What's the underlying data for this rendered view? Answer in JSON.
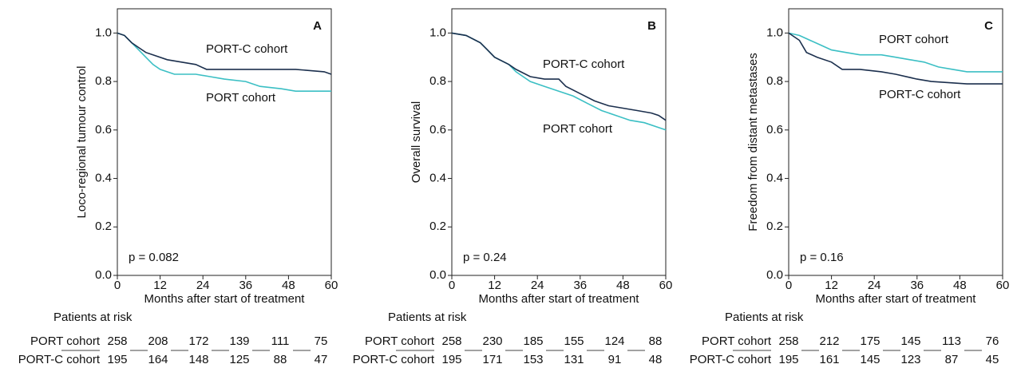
{
  "chart_data": [
    {
      "type": "line",
      "title": "A",
      "ylabel": "Loco-regional tumour control",
      "xlabel": "Months after start of treatment",
      "annotation": "p = 0.082",
      "at_risk_label": "Patients at risk",
      "xlim": [
        0,
        60
      ],
      "ylim": [
        0,
        1.1
      ],
      "xticks": [
        0,
        12,
        24,
        36,
        48,
        60
      ],
      "yticks": [
        {
          "value": 0,
          "label": "0.0"
        },
        0.2,
        0.4,
        0.6,
        0.8,
        {
          "value": 1,
          "label": "1.0"
        }
      ],
      "series": [
        {
          "name": "PORT cohort",
          "color": "#3bbfc4",
          "x": [
            0,
            2,
            4,
            6,
            8,
            10,
            12,
            16,
            22,
            26,
            30,
            36,
            40,
            46,
            50,
            60
          ],
          "values": [
            1,
            0.99,
            0.96,
            0.93,
            0.9,
            0.87,
            0.85,
            0.83,
            0.83,
            0.82,
            0.81,
            0.8,
            0.78,
            0.77,
            0.76,
            0.76
          ],
          "at_risk": [
            258,
            208,
            172,
            139,
            111,
            75
          ]
        },
        {
          "name": "PORT-C cohort",
          "color": "#1b2f4d",
          "x": [
            0,
            2,
            4,
            6,
            8,
            10,
            14,
            18,
            22,
            25,
            30,
            40,
            50,
            58,
            60
          ],
          "values": [
            1,
            0.99,
            0.96,
            0.94,
            0.92,
            0.91,
            0.89,
            0.88,
            0.87,
            0.85,
            0.85,
            0.85,
            0.85,
            0.84,
            0.83
          ],
          "at_risk": [
            195,
            164,
            148,
            125,
            88,
            47
          ]
        }
      ]
    },
    {
      "type": "line",
      "title": "B",
      "ylabel": "Overall survival",
      "xlabel": "Months after start of treatment",
      "annotation": "p = 0.24",
      "at_risk_label": "Patients at risk",
      "xlim": [
        0,
        60
      ],
      "ylim": [
        0,
        1.1
      ],
      "xticks": [
        0,
        12,
        24,
        36,
        48,
        60
      ],
      "yticks": [
        {
          "value": 0,
          "label": "0.0"
        },
        0.2,
        0.4,
        0.6,
        0.8,
        {
          "value": 1,
          "label": "1.0"
        }
      ],
      "series": [
        {
          "name": "PORT cohort",
          "color": "#3bbfc4",
          "x": [
            0,
            4,
            8,
            10,
            12,
            16,
            18,
            22,
            26,
            30,
            34,
            38,
            42,
            46,
            50,
            54,
            58,
            60
          ],
          "values": [
            1,
            0.99,
            0.96,
            0.93,
            0.9,
            0.87,
            0.84,
            0.8,
            0.78,
            0.76,
            0.74,
            0.71,
            0.68,
            0.66,
            0.64,
            0.63,
            0.61,
            0.6
          ],
          "at_risk": [
            258,
            230,
            185,
            155,
            124,
            88
          ]
        },
        {
          "name": "PORT-C cohort",
          "color": "#1b2f4d",
          "x": [
            0,
            4,
            8,
            10,
            12,
            16,
            18,
            22,
            26,
            30,
            32,
            36,
            40,
            44,
            48,
            52,
            56,
            58,
            60
          ],
          "values": [
            1,
            0.99,
            0.96,
            0.93,
            0.9,
            0.87,
            0.85,
            0.82,
            0.81,
            0.81,
            0.78,
            0.75,
            0.72,
            0.7,
            0.69,
            0.68,
            0.67,
            0.66,
            0.64
          ],
          "at_risk": [
            195,
            171,
            153,
            131,
            91,
            48
          ]
        }
      ]
    },
    {
      "type": "line",
      "title": "C",
      "ylabel": "Freedom from distant metastases",
      "xlabel": "Months after start of treatment",
      "annotation": "p = 0.16",
      "at_risk_label": "Patients at risk",
      "xlim": [
        0,
        60
      ],
      "ylim": [
        0,
        1.1
      ],
      "xticks": [
        0,
        12,
        24,
        36,
        48,
        60
      ],
      "yticks": [
        {
          "value": 0,
          "label": "0.0"
        },
        0.2,
        0.4,
        0.6,
        0.8,
        {
          "value": 1,
          "label": "1.0"
        }
      ],
      "series": [
        {
          "name": "PORT cohort",
          "color": "#3bbfc4",
          "x": [
            0,
            3,
            6,
            9,
            12,
            16,
            20,
            26,
            30,
            34,
            38,
            42,
            46,
            50,
            60
          ],
          "values": [
            1,
            0.99,
            0.97,
            0.95,
            0.93,
            0.92,
            0.91,
            0.91,
            0.9,
            0.89,
            0.88,
            0.86,
            0.85,
            0.84,
            0.84
          ],
          "at_risk": [
            258,
            212,
            175,
            145,
            113,
            76
          ]
        },
        {
          "name": "PORT-C cohort",
          "color": "#1b2f4d",
          "x": [
            0,
            3,
            5,
            8,
            12,
            15,
            20,
            26,
            30,
            36,
            40,
            50,
            60
          ],
          "values": [
            1,
            0.97,
            0.92,
            0.9,
            0.88,
            0.85,
            0.85,
            0.84,
            0.83,
            0.81,
            0.8,
            0.79,
            0.79
          ],
          "at_risk": [
            195,
            161,
            145,
            123,
            87,
            45
          ]
        }
      ]
    }
  ]
}
